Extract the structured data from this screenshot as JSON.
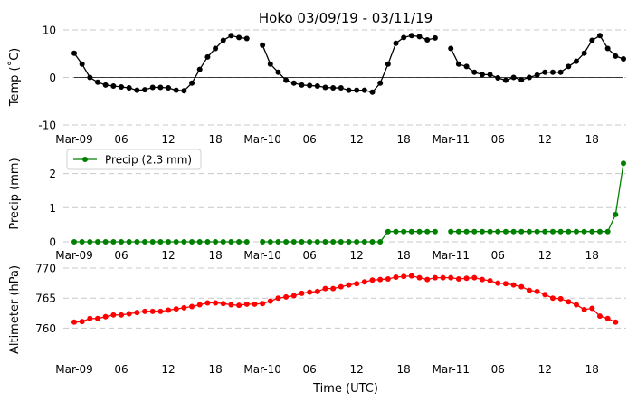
{
  "chart_data": [
    {
      "type": "line",
      "title": "Hoko 03/09/19 - 03/11/19",
      "ylabel": "Temp (˚C)",
      "xlabel": "",
      "ylim": [
        -10,
        10
      ],
      "yticks": [
        -10,
        0,
        10
      ],
      "x": [
        0,
        1,
        2,
        3,
        4,
        5,
        6,
        7,
        8,
        9,
        10,
        11,
        12,
        13,
        14,
        15,
        16,
        17,
        18,
        19,
        20,
        21,
        22,
        23,
        24,
        25,
        26,
        27,
        28,
        29,
        30,
        31,
        32,
        33,
        34,
        35,
        36,
        37,
        38,
        39,
        40,
        41,
        42,
        43,
        44,
        45,
        46,
        47,
        48,
        49,
        50,
        51,
        52,
        53,
        54,
        55,
        56,
        57,
        58,
        59,
        60,
        61,
        62,
        63,
        64,
        65,
        66,
        67,
        68,
        69,
        70
      ],
      "series": [
        {
          "name": "",
          "color": "#000000",
          "values": [
            5.1,
            2.8,
            0.0,
            -1.0,
            -1.6,
            -1.8,
            -2.0,
            -2.2,
            -2.7,
            -2.6,
            -2.1,
            -2.1,
            -2.2,
            -2.7,
            -2.8,
            -1.2,
            1.7,
            4.3,
            6.1,
            7.8,
            8.8,
            8.4,
            8.2,
            null,
            6.8,
            2.8,
            1.1,
            -0.6,
            -1.2,
            -1.6,
            -1.7,
            -1.8,
            -2.1,
            -2.2,
            -2.2,
            -2.7,
            -2.7,
            -2.7,
            -3.1,
            -1.2,
            2.8,
            7.2,
            8.4,
            8.8,
            8.6,
            7.9,
            8.3,
            null,
            6.1,
            2.8,
            2.3,
            1.1,
            0.6,
            0.6,
            -0.1,
            -0.6,
            0.0,
            -0.5,
            0.0,
            0.5,
            1.1,
            1.1,
            1.1,
            2.3,
            3.4,
            5.1,
            7.8,
            8.8,
            6.1,
            4.5,
            3.9
          ]
        }
      ],
      "xticks": [
        {
          "pos": 0,
          "label": "Mar-09"
        },
        {
          "pos": 6,
          "label": "06"
        },
        {
          "pos": 12,
          "label": "12"
        },
        {
          "pos": 18,
          "label": "18"
        },
        {
          "pos": 24,
          "label": "Mar-10"
        },
        {
          "pos": 30,
          "label": "06"
        },
        {
          "pos": 36,
          "label": "12"
        },
        {
          "pos": 42,
          "label": "18"
        },
        {
          "pos": 48,
          "label": "Mar-11"
        },
        {
          "pos": 54,
          "label": "06"
        },
        {
          "pos": 60,
          "label": "12"
        },
        {
          "pos": 66,
          "label": "18"
        }
      ],
      "grid": true,
      "zero_line": true
    },
    {
      "type": "line",
      "title": "",
      "ylabel": "Precip (mm)",
      "xlabel": "",
      "ylim": [
        0,
        2.6
      ],
      "yticks": [
        0,
        1,
        2
      ],
      "x": [
        0,
        1,
        2,
        3,
        4,
        5,
        6,
        7,
        8,
        9,
        10,
        11,
        12,
        13,
        14,
        15,
        16,
        17,
        18,
        19,
        20,
        21,
        22,
        23,
        24,
        25,
        26,
        27,
        28,
        29,
        30,
        31,
        32,
        33,
        34,
        35,
        36,
        37,
        38,
        39,
        40,
        41,
        42,
        43,
        44,
        45,
        46,
        47,
        48,
        49,
        50,
        51,
        52,
        53,
        54,
        55,
        56,
        57,
        58,
        59,
        60,
        61,
        62,
        63,
        64,
        65,
        66,
        67,
        68,
        69,
        70
      ],
      "series": [
        {
          "name": "Precip (2.3 mm)",
          "color": "#008000",
          "values": [
            0,
            0,
            0,
            0,
            0,
            0,
            0,
            0,
            0,
            0,
            0,
            0,
            0,
            0,
            0,
            0,
            0,
            0,
            0,
            0,
            0,
            0,
            0,
            null,
            0,
            0,
            0,
            0,
            0,
            0,
            0,
            0,
            0,
            0,
            0,
            0,
            0,
            0,
            0,
            0,
            0.3,
            0.3,
            0.3,
            0.3,
            0.3,
            0.3,
            0.3,
            null,
            0.3,
            0.3,
            0.3,
            0.3,
            0.3,
            0.3,
            0.3,
            0.3,
            0.3,
            0.3,
            0.3,
            0.3,
            0.3,
            0.3,
            0.3,
            0.3,
            0.3,
            0.3,
            0.3,
            0.3,
            0.3,
            0.8,
            2.3
          ]
        }
      ],
      "xticks": [
        {
          "pos": 0,
          "label": "Mar-09"
        },
        {
          "pos": 6,
          "label": "06"
        },
        {
          "pos": 12,
          "label": "12"
        },
        {
          "pos": 18,
          "label": "18"
        },
        {
          "pos": 24,
          "label": "Mar-10"
        },
        {
          "pos": 30,
          "label": "06"
        },
        {
          "pos": 36,
          "label": "12"
        },
        {
          "pos": 42,
          "label": "18"
        },
        {
          "pos": 48,
          "label": "Mar-11"
        },
        {
          "pos": 54,
          "label": "06"
        },
        {
          "pos": 60,
          "label": "12"
        },
        {
          "pos": 66,
          "label": "18"
        }
      ],
      "grid": true,
      "legend": "top-left"
    },
    {
      "type": "line",
      "title": "",
      "ylabel": "Altimeter (hPa)",
      "xlabel": "Time (UTC)",
      "ylim": [
        756,
        770
      ],
      "yticks": [
        760,
        765,
        770
      ],
      "x": [
        0,
        1,
        2,
        3,
        4,
        5,
        6,
        7,
        8,
        9,
        10,
        11,
        12,
        13,
        14,
        15,
        16,
        17,
        18,
        19,
        20,
        21,
        22,
        23,
        24,
        25,
        26,
        27,
        28,
        29,
        30,
        31,
        32,
        33,
        34,
        35,
        36,
        37,
        38,
        39,
        40,
        41,
        42,
        43,
        44,
        45,
        46,
        47,
        48,
        49,
        50,
        51,
        52,
        53,
        54,
        55,
        56,
        57,
        58,
        59,
        60,
        61,
        62,
        63,
        64,
        65,
        66,
        67,
        68,
        69,
        70
      ],
      "series": [
        {
          "name": "",
          "color": "#ff0000",
          "values": [
            761.0,
            761.1,
            761.6,
            761.6,
            761.9,
            762.2,
            762.2,
            762.4,
            762.6,
            762.8,
            762.8,
            762.8,
            763.0,
            763.2,
            763.4,
            763.6,
            763.9,
            764.2,
            764.2,
            764.1,
            763.9,
            763.8,
            764.0,
            764.0,
            764.1,
            764.5,
            765.0,
            765.2,
            765.4,
            765.8,
            766.0,
            766.1,
            766.6,
            766.6,
            766.9,
            767.2,
            767.4,
            767.7,
            768.0,
            768.1,
            768.2,
            768.5,
            768.6,
            768.7,
            768.4,
            768.1,
            768.4,
            768.4,
            768.4,
            768.2,
            768.3,
            768.4,
            768.1,
            767.9,
            767.5,
            767.4,
            767.2,
            766.9,
            766.3,
            766.1,
            765.6,
            765.0,
            764.9,
            764.4,
            763.9,
            763.1,
            763.3,
            762.0,
            761.6,
            761.0,
            null
          ]
        }
      ],
      "xticks": [
        {
          "pos": 0,
          "label": "Mar-09"
        },
        {
          "pos": 6,
          "label": "06"
        },
        {
          "pos": 12,
          "label": "12"
        },
        {
          "pos": 18,
          "label": "18"
        },
        {
          "pos": 24,
          "label": "Mar-10"
        },
        {
          "pos": 30,
          "label": "06"
        },
        {
          "pos": 36,
          "label": "12"
        },
        {
          "pos": 42,
          "label": "18"
        },
        {
          "pos": 48,
          "label": "Mar-11"
        },
        {
          "pos": 54,
          "label": "06"
        },
        {
          "pos": 60,
          "label": "12"
        },
        {
          "pos": 66,
          "label": "18"
        }
      ],
      "grid": true
    }
  ]
}
